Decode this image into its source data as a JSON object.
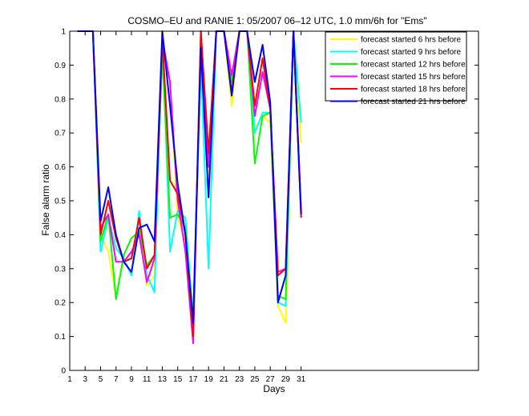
{
  "chart_data": {
    "type": "line",
    "title": "COSMO–EU and RANIE 1: 05/2007 06–12 UTC, 1.0 mm/6h for \"Ems\"",
    "xlabel": "Days",
    "ylabel": "False alarm ratio",
    "xlim": [
      1,
      54
    ],
    "ylim": [
      0,
      1
    ],
    "x_ticks": [
      1,
      3,
      5,
      7,
      9,
      11,
      13,
      15,
      17,
      19,
      21,
      23,
      25,
      27,
      29,
      31
    ],
    "x_tick_labels": [
      "1",
      "3",
      "5",
      "7",
      "9",
      "11",
      "13",
      "15",
      "17",
      "19",
      "21",
      "23",
      "25",
      "27",
      "29",
      "31"
    ],
    "y_ticks": [
      0,
      0.1,
      0.2,
      0.3,
      0.4,
      0.5,
      0.6,
      0.7,
      0.8,
      0.9,
      1
    ],
    "y_tick_labels": [
      "0",
      "0.1",
      "0.2",
      "0.3",
      "0.4",
      "0.5",
      "0.6",
      "0.7",
      "0.8",
      "0.9",
      "1"
    ],
    "grid": false,
    "legend_position": "top-right",
    "x": [
      2,
      3,
      4,
      5,
      6,
      7,
      8,
      9,
      10,
      11,
      12,
      13,
      14,
      15,
      16,
      17,
      18,
      19,
      20,
      21,
      22,
      23,
      24,
      25,
      26,
      27,
      28,
      29,
      30,
      31
    ],
    "series": [
      {
        "name": "forecast started 6 hrs before",
        "color": "#ffff00",
        "values": [
          1,
          1,
          1,
          0.4,
          0.35,
          0.22,
          0.33,
          0.33,
          0.42,
          0.25,
          0.28,
          0.95,
          0.85,
          0.45,
          0.38,
          0.12,
          1,
          0.55,
          1,
          1,
          0.78,
          1,
          1,
          0.71,
          0.75,
          0.73,
          0.19,
          0.14,
          1,
          0.67
        ]
      },
      {
        "name": "forecast started 9 hrs before",
        "color": "#00ffff",
        "values": [
          1,
          1,
          1,
          0.35,
          0.45,
          0.36,
          0.33,
          0.28,
          0.47,
          0.28,
          0.23,
          1,
          0.35,
          0.47,
          0.45,
          0.15,
          0.9,
          0.3,
          1,
          1,
          0.85,
          1,
          1,
          0.7,
          0.76,
          0.76,
          0.2,
          0.19,
          1,
          0.73
        ]
      },
      {
        "name": "forecast started 12 hrs before",
        "color": "#00ff00",
        "values": [
          1,
          1,
          1,
          0.38,
          0.46,
          0.21,
          0.34,
          0.39,
          0.41,
          0.31,
          0.34,
          0.93,
          0.45,
          0.46,
          0.42,
          0.15,
          0.95,
          0.6,
          1,
          1,
          0.85,
          1,
          1,
          0.61,
          0.75,
          0.76,
          0.22,
          0.21,
          1,
          0.46
        ]
      },
      {
        "name": "forecast started 15 hrs before",
        "color": "#ff00ff",
        "values": [
          1,
          1,
          1,
          0.42,
          0.46,
          0.32,
          0.32,
          0.35,
          0.4,
          0.26,
          0.33,
          0.98,
          0.85,
          0.5,
          0.35,
          0.08,
          1,
          0.6,
          1,
          1,
          0.87,
          1,
          1,
          0.75,
          0.88,
          0.77,
          0.29,
          0.3,
          1,
          0.47
        ]
      },
      {
        "name": "forecast started 18 hrs before",
        "color": "#ff0000",
        "values": [
          1,
          1,
          1,
          0.4,
          0.5,
          0.39,
          0.32,
          0.33,
          0.45,
          0.3,
          0.34,
          0.98,
          0.56,
          0.52,
          0.4,
          0.1,
          1,
          0.64,
          1,
          1,
          0.82,
          1,
          1,
          0.78,
          0.92,
          0.77,
          0.28,
          0.3,
          1,
          0.45
        ]
      },
      {
        "name": "forecast started 21 hrs before",
        "color": "#0000ff",
        "values": [
          1,
          1,
          1,
          0.44,
          0.54,
          0.4,
          0.32,
          0.29,
          0.42,
          0.43,
          0.38,
          1,
          0.78,
          0.55,
          0.4,
          0.14,
          0.95,
          0.51,
          1,
          1,
          0.81,
          1,
          1,
          0.85,
          0.96,
          0.79,
          0.2,
          0.28,
          1,
          0.46
        ]
      }
    ]
  }
}
